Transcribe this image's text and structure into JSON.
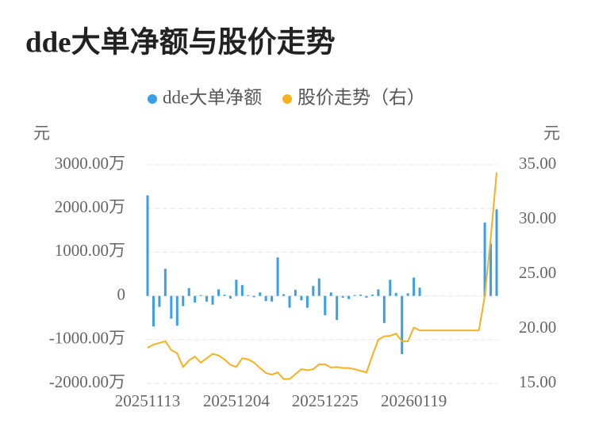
{
  "chart_data": {
    "type": "bar-line",
    "title": "dde大单净额与股价走势",
    "y_label": "元",
    "y2_label": "元",
    "categories": [
      "20251113",
      null,
      null,
      null,
      null,
      null,
      null,
      null,
      null,
      null,
      null,
      null,
      null,
      null,
      null,
      "20251204",
      null,
      null,
      null,
      null,
      null,
      null,
      null,
      null,
      null,
      null,
      null,
      null,
      null,
      null,
      "20251225",
      null,
      null,
      null,
      null,
      null,
      null,
      null,
      null,
      null,
      null,
      null,
      null,
      null,
      null,
      "20260119",
      null,
      null,
      null,
      null,
      null,
      null,
      null,
      null,
      null,
      null,
      null,
      null,
      null,
      null
    ],
    "series": [
      {
        "name": "dde大单净额",
        "type": "bar",
        "color": "#3b9ee8",
        "axis": "y",
        "values": [
          2300,
          -700,
          -250,
          620,
          -520,
          -680,
          -230,
          180,
          -150,
          20,
          -130,
          -200,
          150,
          30,
          -60,
          370,
          250,
          20,
          -30,
          80,
          -120,
          -130,
          880,
          40,
          -270,
          140,
          -100,
          -270,
          230,
          400,
          -440,
          80,
          -550,
          -40,
          -70,
          20,
          30,
          -40,
          30,
          150,
          -620,
          370,
          70,
          -1330,
          60,
          420,
          190,
          null,
          null,
          null,
          null,
          null,
          null,
          null,
          null,
          null,
          null,
          1680,
          1200,
          1980
        ]
      },
      {
        "name": "股价走势（右）",
        "type": "line",
        "color": "#f5b120",
        "axis": "y2",
        "values": [
          18.26,
          18.55,
          18.7,
          18.85,
          18.05,
          17.75,
          16.5,
          17.1,
          17.45,
          16.9,
          17.3,
          17.7,
          17.55,
          17.2,
          16.7,
          16.5,
          17.3,
          17.2,
          16.9,
          16.4,
          15.95,
          15.8,
          16.0,
          15.4,
          15.4,
          15.85,
          16.3,
          16.2,
          16.3,
          16.75,
          16.75,
          16.45,
          16.5,
          16.4,
          16.4,
          16.3,
          16.15,
          16.0,
          17.55,
          19.0,
          19.3,
          19.35,
          19.55,
          18.85,
          18.85,
          20.1,
          19.85,
          19.85,
          19.85,
          19.85,
          19.85,
          19.85,
          19.85,
          19.85,
          19.85,
          19.85,
          19.85,
          23.0,
          28.3,
          34.3
        ]
      }
    ],
    "ylim": [
      -2000,
      3000
    ],
    "yticks": [
      {
        "value": -2000,
        "label": "-2000.00万"
      },
      {
        "value": -1000,
        "label": "-1000.00万"
      },
      0,
      {
        "value": 1000,
        "label": "1000.00万"
      },
      {
        "value": 2000,
        "label": "2000.00万"
      },
      {
        "value": 3000,
        "label": "3000.00万"
      }
    ],
    "y2lim": [
      15,
      35
    ],
    "y2ticks": [
      {
        "value": 15,
        "label": "15.00"
      },
      {
        "value": 20,
        "label": "20.00"
      },
      {
        "value": 25,
        "label": "25.00"
      },
      {
        "value": 30,
        "label": "30.00"
      },
      {
        "value": 35,
        "label": "35.00"
      }
    ],
    "grid": true,
    "legend": "top"
  }
}
